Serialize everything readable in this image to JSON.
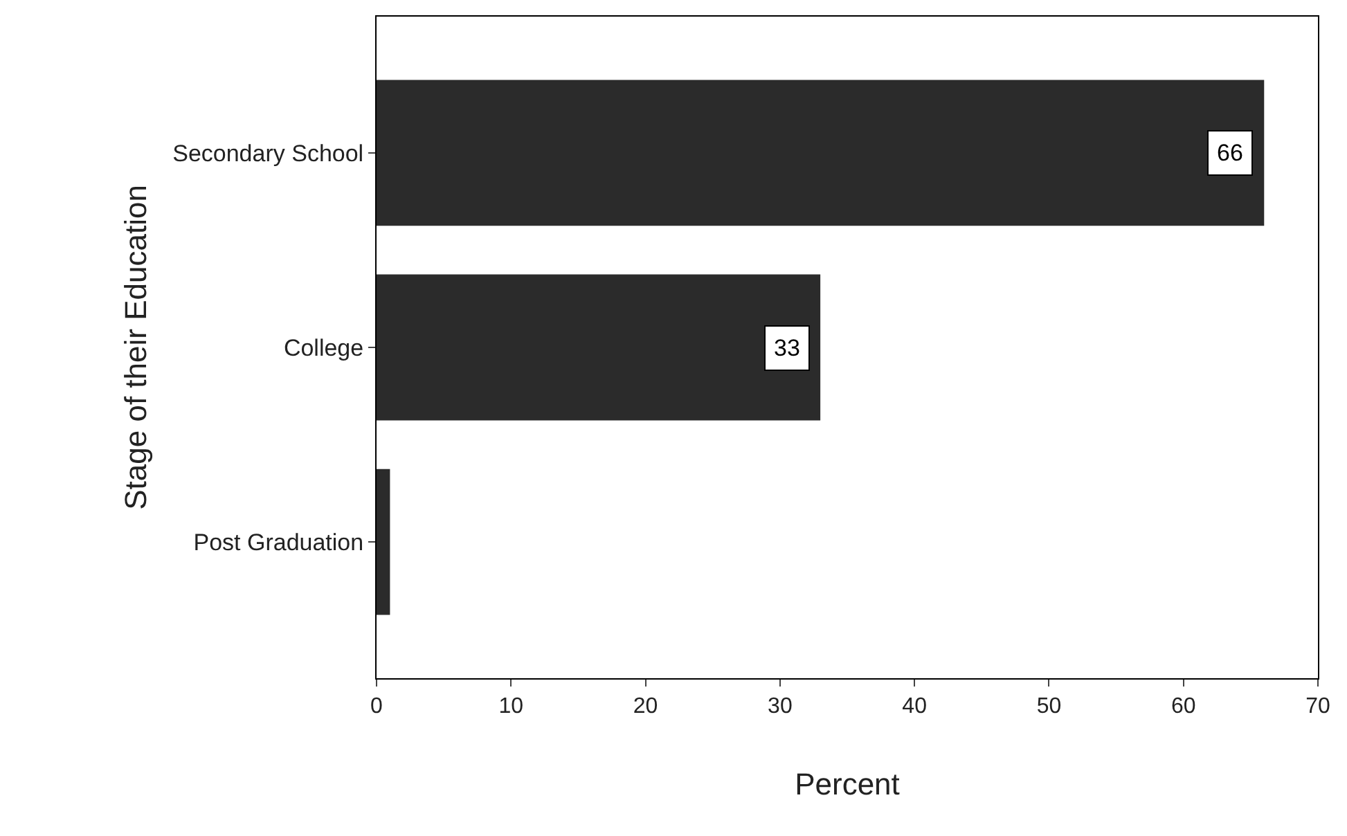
{
  "chart_data": {
    "type": "bar",
    "orientation": "horizontal",
    "xlabel": "Percent",
    "ylabel": "Stage of their Education",
    "categories": [
      "Secondary School",
      "College",
      "Post Graduation"
    ],
    "values": [
      66,
      33,
      1
    ],
    "value_labels": [
      "66",
      "33",
      null
    ],
    "color": "#2b2b2b",
    "xlim": [
      0,
      70
    ],
    "xticks": [
      0,
      10,
      20,
      30,
      40,
      50,
      60,
      70
    ]
  }
}
